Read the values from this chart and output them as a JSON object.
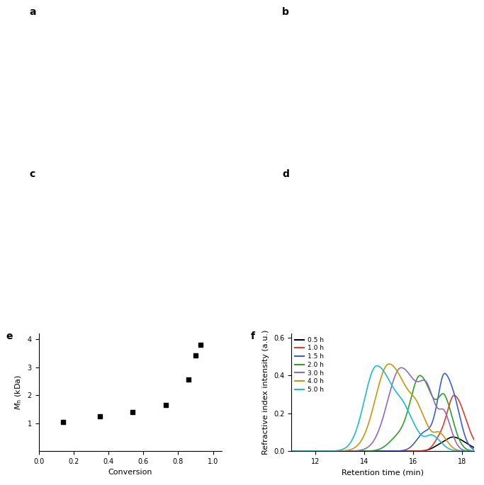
{
  "panel_e": {
    "title": "e",
    "x": [
      0.14,
      0.35,
      0.54,
      0.73,
      0.86,
      0.9,
      0.93
    ],
    "y": [
      1.05,
      1.23,
      1.4,
      1.65,
      2.55,
      3.42,
      3.8
    ],
    "xlabel": "Conversion",
    "ylabel": "$M_{\\mathrm{n}}$ (kDa)",
    "xlim": [
      0,
      1.05
    ],
    "ylim": [
      0,
      4.2
    ],
    "xticks": [
      0,
      0.2,
      0.4,
      0.6,
      0.8,
      1.0
    ],
    "yticks": [
      1,
      2,
      3,
      4
    ]
  },
  "panel_f": {
    "title": "f",
    "xlabel": "Retention time (min)",
    "ylabel": "Refractive index intensity (a.u.)",
    "xlim": [
      11,
      18.5
    ],
    "ylim": [
      0,
      0.62
    ],
    "xticks": [
      12,
      14,
      16,
      18
    ],
    "yticks": [
      0,
      0.2,
      0.4,
      0.6
    ],
    "legend_labels": [
      "0.5 h",
      "1.0 h",
      "1.5 h",
      "2.0 h",
      "3.0 h",
      "4.0 h",
      "5.0 h"
    ],
    "legend_colors": [
      "#000000",
      "#e8372b",
      "#3a5fcd",
      "#2ca02c",
      "#9467bd",
      "#c8960c",
      "#17becf"
    ]
  },
  "figure_bg": "#ffffff"
}
